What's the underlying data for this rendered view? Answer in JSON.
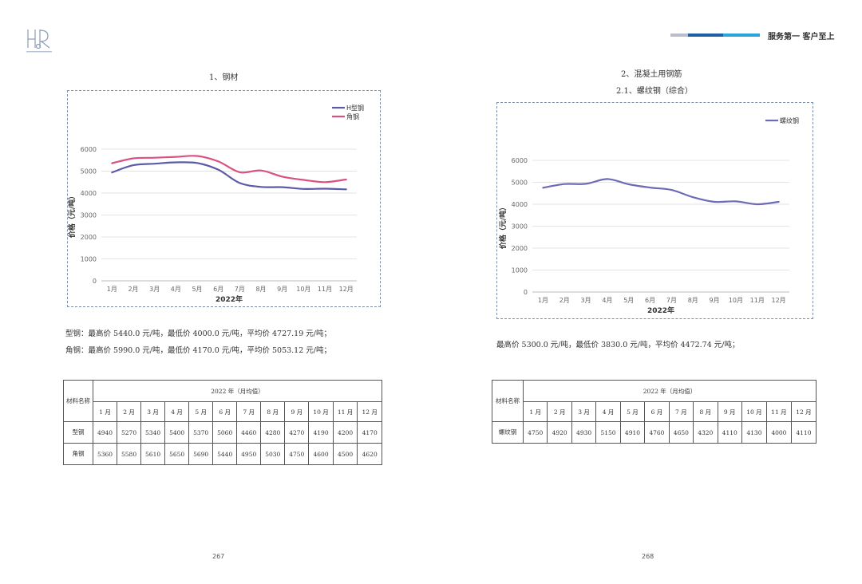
{
  "header": {
    "slogan": "服务第一 客户至上",
    "bar_colors": [
      "#b9bec8",
      "#1f5fa8",
      "#2aa3df"
    ]
  },
  "left": {
    "section_title": "1、钢材",
    "chart_data": {
      "type": "line",
      "categories": [
        "1月",
        "2月",
        "3月",
        "4月",
        "5月",
        "6月",
        "7月",
        "8月",
        "9月",
        "10月",
        "11月",
        "12月"
      ],
      "series": [
        {
          "name": "H型钢",
          "color": "#5b5ba8",
          "values": [
            4940,
            5270,
            5340,
            5400,
            5370,
            5060,
            4460,
            4280,
            4270,
            4190,
            4200,
            4170
          ]
        },
        {
          "name": "角钢",
          "color": "#d9527f",
          "values": [
            5360,
            5580,
            5610,
            5650,
            5690,
            5440,
            4950,
            5030,
            4750,
            4600,
            4500,
            4620
          ]
        }
      ],
      "xlabel": "2022年",
      "ylabel": "价格（元/吨）",
      "ylim": [
        0,
        6000
      ],
      "yticks": [
        "0",
        "1000",
        "2000",
        "3000",
        "4000",
        "5000",
        "6000"
      ],
      "grid": true,
      "legend": "top-right"
    },
    "stats": [
      "型钢：最高价 5440.0 元/吨，最低价 4000.0 元/吨，平均价 4727.19 元/吨；",
      "角钢：最高价 5990.0 元/吨，最低价 4170.0 元/吨，平均价 5053.12 元/吨；"
    ],
    "table": {
      "material_header": "材料名称",
      "period_header": "2022 年（月均值）",
      "months": [
        "1 月",
        "2 月",
        "3 月",
        "4 月",
        "5 月",
        "6 月",
        "7 月",
        "8 月",
        "9 月",
        "10 月",
        "11 月",
        "12 月"
      ],
      "rows": [
        {
          "name": "型钢",
          "values": [
            "4940",
            "5270",
            "5340",
            "5400",
            "5370",
            "5060",
            "4460",
            "4280",
            "4270",
            "4190",
            "4200",
            "4170"
          ]
        },
        {
          "name": "角钢",
          "values": [
            "5360",
            "5580",
            "5610",
            "5650",
            "5690",
            "5440",
            "4950",
            "5030",
            "4750",
            "4600",
            "4500",
            "4620"
          ]
        }
      ]
    },
    "page_number": "267"
  },
  "right": {
    "section_title": "2、混凝土用钢筋",
    "subsection_title": "2.1、螺纹钢（综合）",
    "chart_data": {
      "type": "line",
      "categories": [
        "1月",
        "2月",
        "3月",
        "4月",
        "5月",
        "6月",
        "7月",
        "8月",
        "9月",
        "10月",
        "11月",
        "12月"
      ],
      "series": [
        {
          "name": "螺纹钢",
          "color": "#6e6ab3",
          "values": [
            4750,
            4920,
            4930,
            5150,
            4910,
            4760,
            4650,
            4320,
            4110,
            4130,
            4000,
            4110
          ]
        }
      ],
      "xlabel": "2022年",
      "ylabel": "价格（元/吨）",
      "ylim": [
        0,
        6000
      ],
      "yticks": [
        "0",
        "1000",
        "2000",
        "3000",
        "4000",
        "5000",
        "6000"
      ],
      "grid": true,
      "legend": "top-right"
    },
    "stats": [
      "最高价 5300.0 元/吨，最低价 3830.0 元/吨，平均价 4472.74 元/吨；"
    ],
    "table": {
      "material_header": "材料名称",
      "period_header": "2022 年（月均值）",
      "months": [
        "1 月",
        "2 月",
        "3 月",
        "4 月",
        "5 月",
        "6 月",
        "7 月",
        "8 月",
        "9 月",
        "10 月",
        "11 月",
        "12 月"
      ],
      "rows": [
        {
          "name": "螺纹钢",
          "values": [
            "4750",
            "4920",
            "4930",
            "5150",
            "4910",
            "4760",
            "4650",
            "4320",
            "4110",
            "4130",
            "4000",
            "4110"
          ]
        }
      ]
    },
    "page_number": "268"
  }
}
